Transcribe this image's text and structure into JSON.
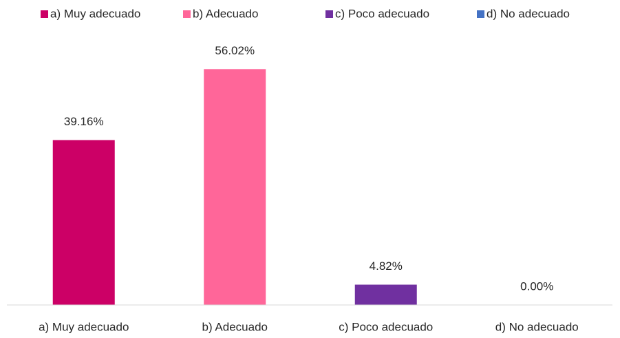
{
  "chart_data": {
    "type": "bar",
    "categories": [
      "a) Muy adecuado",
      "b) Adecuado",
      "c) Poco adecuado",
      "d) No adecuado"
    ],
    "values": [
      39.16,
      56.02,
      4.82,
      0.0
    ],
    "value_labels": [
      "39.16%",
      "56.02%",
      "4.82%",
      "0.00%"
    ],
    "colors": [
      "#cc0066",
      "#ff6699",
      "#7030a0",
      "#4472c4"
    ],
    "ylim": [
      0,
      60
    ],
    "legend": "top"
  }
}
